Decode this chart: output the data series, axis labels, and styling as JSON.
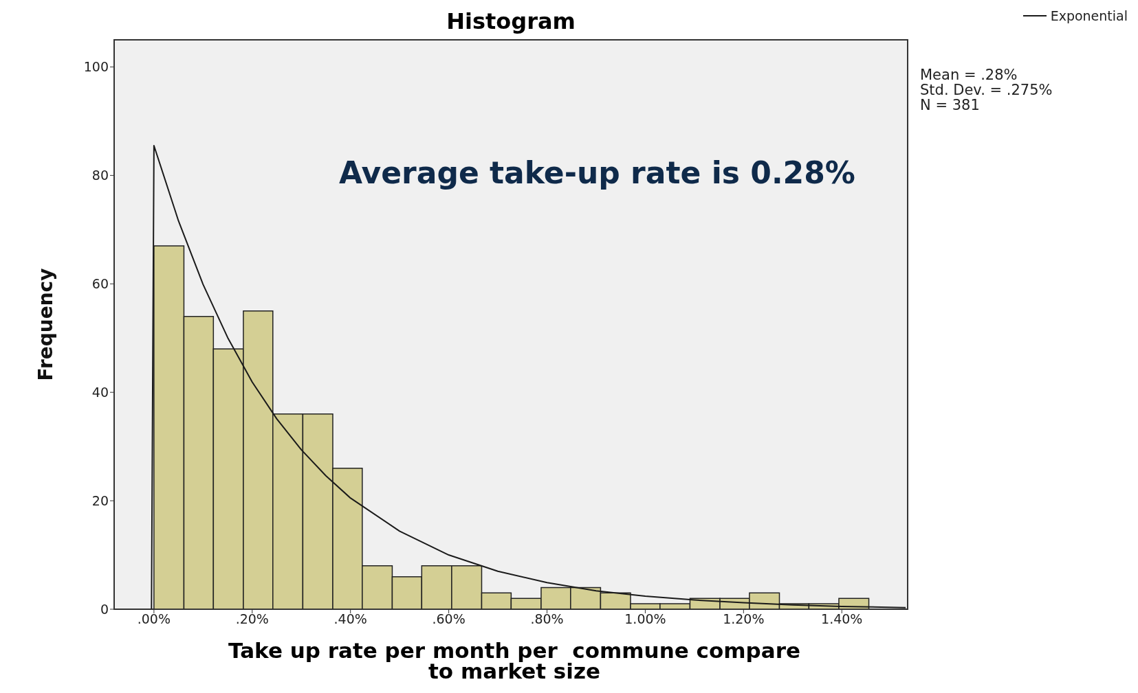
{
  "chart_data": {
    "type": "histogram",
    "title": "Histogram",
    "xlabel": "Take up rate per month per  commune compare to market size",
    "ylabel": "Frequency",
    "bins": [
      0,
      0.061,
      0.121,
      0.182,
      0.242,
      0.303,
      0.364,
      0.424,
      0.485,
      0.545,
      0.606,
      0.667,
      0.727,
      0.788,
      0.848,
      0.909,
      0.97,
      1.03,
      1.091,
      1.152,
      1.212,
      1.273,
      1.333,
      1.394,
      1.455
    ],
    "values": [
      67,
      54,
      48,
      55,
      36,
      36,
      26,
      8,
      6,
      8,
      8,
      3,
      2,
      4,
      4,
      3,
      1,
      1,
      2,
      2,
      3,
      1,
      1,
      2
    ],
    "color": "#d4cf94",
    "series": [
      {
        "type": "line",
        "name": "Exponential",
        "color": "#1a1a1a",
        "x": [
          -0.005,
          0,
          0.05,
          0.1,
          0.15,
          0.2,
          0.25,
          0.3,
          0.35,
          0.4,
          0.5,
          0.6,
          0.7,
          0.8,
          0.9,
          1.0,
          1.1,
          1.2,
          1.3,
          1.4,
          1.53
        ],
        "values": [
          0,
          85.5,
          71.6,
          59.9,
          50.1,
          41.9,
          35.1,
          29.4,
          24.6,
          20.5,
          14.4,
          10,
          7,
          4.9,
          3.4,
          2.4,
          1.7,
          1.2,
          0.8,
          0.5,
          0.3
        ]
      }
    ],
    "xlim": [
      -0.081,
      1.534
    ],
    "xticks": [
      {
        "value": 0,
        "label": ".00%"
      },
      {
        "value": 0.2,
        "label": ".20%"
      },
      {
        "value": 0.4,
        "label": ".40%"
      },
      {
        "value": 0.6,
        "label": ".60%"
      },
      {
        "value": 0.8,
        "label": ".80%"
      },
      {
        "value": 1,
        "label": "1.00%"
      },
      {
        "value": 1.2,
        "label": "1.20%"
      },
      {
        "value": 1.4,
        "label": "1.40%"
      }
    ],
    "ylim": [
      0,
      105
    ],
    "yticks": [
      0,
      20,
      40,
      60,
      80,
      100
    ],
    "legend": "top right",
    "annotations": [
      "Mean = .28%",
      "Std. Dev. = .275%",
      "N = 381",
      "Average take-up rate is 0.28%"
    ]
  }
}
